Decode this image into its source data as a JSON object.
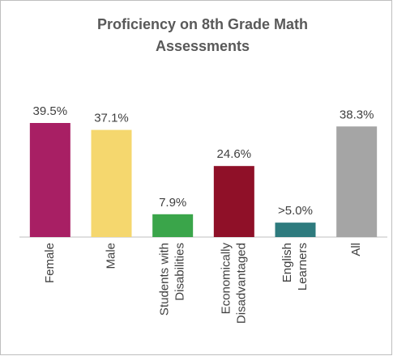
{
  "chart_data": {
    "type": "bar",
    "title": "Proficiency on 8th Grade Math\nAssessments",
    "categories": [
      "Female",
      "Male",
      "Students with\nDisabilities",
      "Economically\nDisadvantaged",
      "English\nLearners",
      "All"
    ],
    "values": [
      39.5,
      37.1,
      7.9,
      24.6,
      5.0,
      38.3
    ],
    "value_labels": [
      "39.5%",
      "37.1%",
      "7.9%",
      "24.6%",
      ">5.0%",
      "38.3%"
    ],
    "colors": [
      "#a81f64",
      "#f5d76e",
      "#3aa54a",
      "#8f1028",
      "#2e7b7e",
      "#a5a5a5"
    ]
  }
}
